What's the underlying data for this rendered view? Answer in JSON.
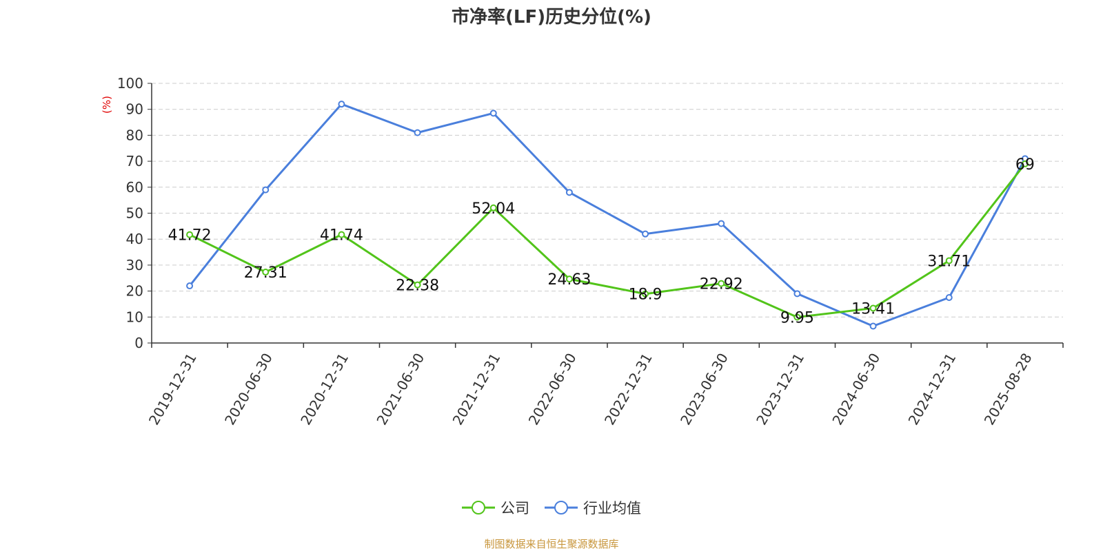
{
  "chart_data": {
    "type": "line",
    "title": "市净率(LF)历史分位(%)",
    "ylabel": "(%)",
    "ylim": [
      0,
      100
    ],
    "yticks": [
      0,
      10,
      20,
      30,
      40,
      50,
      60,
      70,
      80,
      90,
      100
    ],
    "grid": true,
    "legend_position": "bottom",
    "categories": [
      "2019-12-31",
      "2020-06-30",
      "2020-12-31",
      "2021-06-30",
      "2021-12-31",
      "2022-06-30",
      "2022-12-31",
      "2023-06-30",
      "2023-12-31",
      "2024-06-30",
      "2024-12-31",
      "2025-08-28"
    ],
    "series": [
      {
        "name": "公司",
        "color": "#52c41a",
        "values": [
          41.72,
          27.31,
          41.74,
          22.38,
          52.04,
          24.63,
          18.9,
          22.92,
          9.95,
          13.41,
          31.71,
          69
        ],
        "labels": [
          "41.72",
          "27.31",
          "41.74",
          "22.38",
          "52.04",
          "24.63",
          "18.9",
          "22.92",
          "9.95",
          "13.41",
          "31.71",
          "69"
        ]
      },
      {
        "name": "行业均值",
        "color": "#4a7fdc",
        "values": [
          22,
          59,
          92,
          81,
          88.5,
          58,
          42,
          46,
          19,
          6.5,
          17.5,
          71
        ]
      }
    ]
  },
  "source_text": "制图数据来自恒生聚源数据库"
}
